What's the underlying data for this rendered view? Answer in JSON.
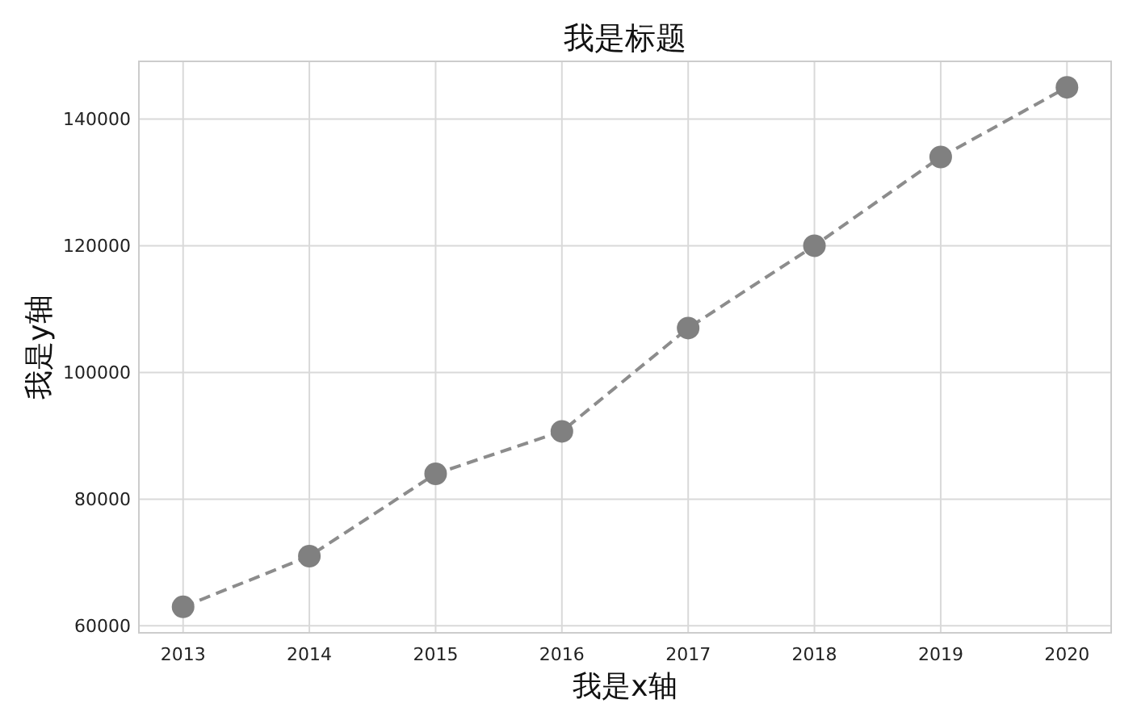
{
  "chart_data": {
    "type": "line",
    "title": "我是标题",
    "xlabel": "我是x轴",
    "ylabel": "我是y轴",
    "x": [
      2013,
      2014,
      2015,
      2016,
      2017,
      2018,
      2019,
      2020
    ],
    "series": [
      {
        "color": "#808080",
        "values": [
          63000,
          71000,
          84000,
          90700,
          107000,
          120000,
          134000,
          145000
        ]
      }
    ],
    "xlim": [
      2012.65,
      2020.35
    ],
    "ylim": [
      58900,
      149100
    ],
    "xticks": [
      2013,
      2014,
      2015,
      2016,
      2017,
      2018,
      2019,
      2020
    ],
    "yticks": [
      60000,
      80000,
      100000,
      120000,
      140000
    ],
    "grid": true,
    "marker": "circle",
    "line_style": "dashed"
  }
}
